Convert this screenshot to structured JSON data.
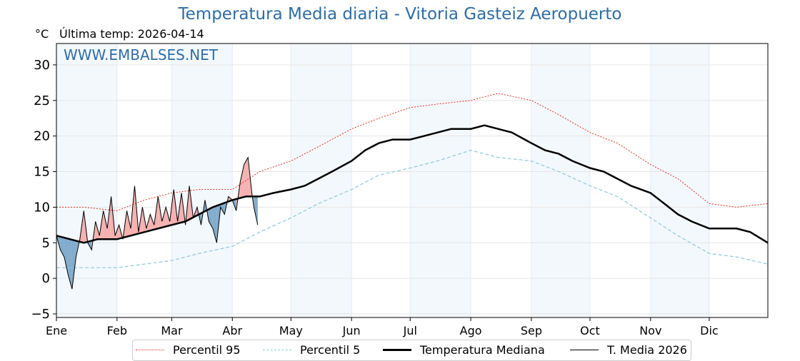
{
  "chart_data": {
    "type": "line",
    "title": "Temperatura Media diaria - Vitoria Gasteiz Aeropuerto",
    "subtitle": "Última temp: 2026-04-14",
    "ylabel": "°C",
    "watermark": "WWW.EMBALSES.NET",
    "ylim": [
      -5.5,
      33
    ],
    "yticks": [
      -5,
      0,
      5,
      10,
      15,
      20,
      25,
      30
    ],
    "ytick_labels": [
      "−5",
      "0",
      "5",
      "10",
      "15",
      "20",
      "25",
      "30"
    ],
    "x_months": [
      "Ene",
      "Feb",
      "Mar",
      "Abr",
      "May",
      "Jun",
      "Jul",
      "Ago",
      "Sep",
      "Oct",
      "Nov",
      "Dic"
    ],
    "grid": true,
    "legend_position": "bottom",
    "series": [
      {
        "name": "Percentil 95",
        "color": "#e03020",
        "style": "dotted",
        "x": [
          1,
          15,
          32,
          46,
          60,
          74,
          91,
          105,
          121,
          135,
          152,
          166,
          182,
          196,
          213,
          227,
          244,
          258,
          274,
          288,
          305,
          319,
          335,
          349,
          365
        ],
        "y": [
          10,
          10,
          9.5,
          11,
          12,
          12.5,
          12.5,
          15,
          16.5,
          18.5,
          21,
          22.5,
          24,
          24.5,
          25,
          26,
          25,
          23,
          20.5,
          19,
          16,
          14,
          10.5,
          10,
          10.5
        ]
      },
      {
        "name": "Percentil 5",
        "color": "#8ec8dc",
        "style": "dashed",
        "x": [
          1,
          15,
          32,
          46,
          60,
          74,
          91,
          105,
          121,
          135,
          152,
          166,
          182,
          196,
          213,
          227,
          244,
          258,
          274,
          288,
          305,
          319,
          335,
          349,
          365
        ],
        "y": [
          1.5,
          1.5,
          1.5,
          2,
          2.5,
          3.5,
          4.5,
          6.5,
          8.5,
          10.5,
          12.5,
          14.5,
          15.5,
          16.5,
          18,
          17,
          16.5,
          15,
          13,
          11.5,
          8.5,
          6,
          3.5,
          3,
          2
        ]
      },
      {
        "name": "Temperatura Mediana",
        "color": "#000000",
        "style": "solid-thick",
        "x": [
          1,
          8,
          15,
          22,
          32,
          39,
          46,
          53,
          60,
          67,
          74,
          81,
          91,
          98,
          105,
          112,
          121,
          128,
          135,
          142,
          152,
          159,
          166,
          173,
          182,
          189,
          196,
          203,
          213,
          220,
          227,
          234,
          244,
          251,
          258,
          265,
          274,
          281,
          288,
          295,
          305,
          312,
          319,
          326,
          335,
          342,
          349,
          356,
          365
        ],
        "y": [
          6,
          5.5,
          5,
          5.5,
          5.5,
          6,
          6.5,
          7,
          7.5,
          8,
          9,
          10,
          11,
          11.5,
          11.5,
          12,
          12.5,
          13,
          14,
          15,
          16.5,
          18,
          19,
          19.5,
          19.5,
          20,
          20.5,
          21,
          21,
          21.5,
          21,
          20.5,
          19,
          18,
          17.5,
          16.5,
          15.5,
          15,
          14,
          13,
          12,
          10.5,
          9,
          8,
          7,
          7,
          7,
          6.5,
          5
        ]
      },
      {
        "name": "T. Media 2026",
        "color": "#000000",
        "style": "solid-thin",
        "x": [
          1,
          3,
          5,
          7,
          9,
          11,
          13,
          15,
          17,
          19,
          21,
          23,
          25,
          27,
          29,
          31,
          33,
          35,
          37,
          39,
          41,
          43,
          45,
          47,
          49,
          51,
          53,
          55,
          57,
          59,
          61,
          63,
          65,
          67,
          69,
          71,
          73,
          75,
          77,
          79,
          81,
          83,
          85,
          87,
          89,
          91,
          93,
          95,
          97,
          99,
          101,
          102,
          104
        ],
        "y": [
          6,
          4,
          3,
          0.5,
          -1.5,
          3,
          5.5,
          9.5,
          5,
          4,
          8,
          6,
          9.5,
          7,
          11.5,
          6,
          7.5,
          5.5,
          9.5,
          7,
          13,
          6.5,
          10,
          7,
          9,
          7.5,
          11.5,
          8,
          10,
          8,
          12.5,
          8,
          12,
          7.5,
          13,
          8.5,
          10,
          7.5,
          11,
          8,
          7,
          5,
          10,
          9,
          11.5,
          11,
          9.5,
          13.5,
          16,
          17,
          12,
          10,
          7.5
        ]
      }
    ]
  },
  "legend": {
    "p95": "Percentil 95",
    "p5": "Percentil 5",
    "median": "Temperatura Mediana",
    "y2026": "T. Media 2026"
  }
}
